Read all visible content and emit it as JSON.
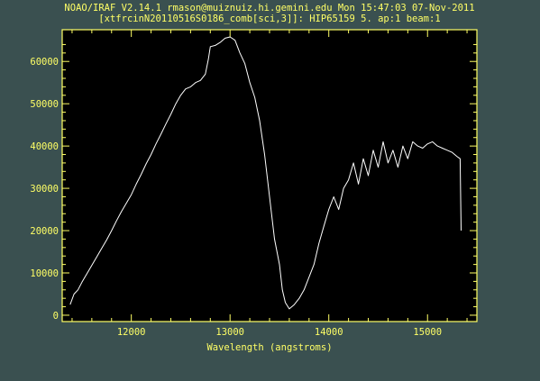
{
  "window": {
    "background": "#3a5050",
    "plot_background": "#000000",
    "frame_color": "#ffff66",
    "text_color": "#ffff66",
    "trace_color": "#ffffff"
  },
  "header": {
    "line1": "NOAO/IRAF V2.14.1 rmason@muiznuiz.hi.gemini.edu Mon 15:47:03 07-Nov-2011",
    "line2": "[xtfrcinN20110516S0186_comb[sci,3]]: HIP65159 5. ap:1 beam:1"
  },
  "chart_data": {
    "type": "line",
    "title": "",
    "xlabel": "Wavelength (angstroms)",
    "ylabel": "",
    "xlim": [
      11300,
      15500
    ],
    "ylim": [
      -1500,
      67500
    ],
    "x_ticks": [
      12000,
      13000,
      14000,
      15000
    ],
    "x_tick_labels": [
      "12000",
      "13000",
      "14000",
      "15000"
    ],
    "y_ticks": [
      0,
      10000,
      20000,
      30000,
      40000,
      50000,
      60000
    ],
    "y_tick_labels": [
      "0",
      "10000",
      "20000",
      "30000",
      "40000",
      "50000",
      "60000"
    ],
    "grid": false,
    "series": [
      {
        "x": [
          11380,
          11420,
          11460,
          11500,
          11550,
          11600,
          11650,
          11700,
          11750,
          11800,
          11850,
          11900,
          11950,
          12000,
          12050,
          12100,
          12150,
          12200,
          12250,
          12300,
          12350,
          12400,
          12450,
          12500,
          12550,
          12600,
          12650,
          12700,
          12750,
          12780,
          12800,
          12850,
          12900,
          12950,
          13000,
          13050,
          13100,
          13150,
          13200,
          13250,
          13300,
          13350,
          13400,
          13450,
          13500,
          13530,
          13560,
          13600,
          13650,
          13700,
          13750,
          13800,
          13850,
          13900,
          13950,
          14000,
          14050,
          14100,
          14150,
          14200,
          14250,
          14300,
          14350,
          14400,
          14450,
          14500,
          14550,
          14600,
          14650,
          14700,
          14750,
          14800,
          14850,
          14900,
          14950,
          15000,
          15050,
          15100,
          15150,
          15200,
          15250,
          15300,
          15330,
          15340
        ],
        "y": [
          2500,
          5000,
          6000,
          7800,
          9800,
          11800,
          13800,
          15800,
          17800,
          20000,
          22300,
          24500,
          26500,
          28500,
          31000,
          33300,
          35800,
          38000,
          40500,
          42800,
          45200,
          47500,
          50000,
          52000,
          53500,
          54000,
          55000,
          55500,
          57000,
          60500,
          63500,
          63800,
          64500,
          65500,
          65800,
          65000,
          62000,
          59500,
          55000,
          51500,
          46000,
          38000,
          28000,
          18000,
          12000,
          6000,
          3000,
          1500,
          2500,
          4000,
          6000,
          9000,
          12000,
          17000,
          21000,
          25000,
          28000,
          25000,
          30000,
          32000,
          36000,
          31000,
          37000,
          33000,
          39000,
          35000,
          41000,
          36000,
          39000,
          35000,
          40000,
          37000,
          41000,
          40000,
          39500,
          40500,
          41000,
          40000,
          39500,
          39000,
          38500,
          37500,
          37000,
          20000
        ]
      }
    ]
  }
}
